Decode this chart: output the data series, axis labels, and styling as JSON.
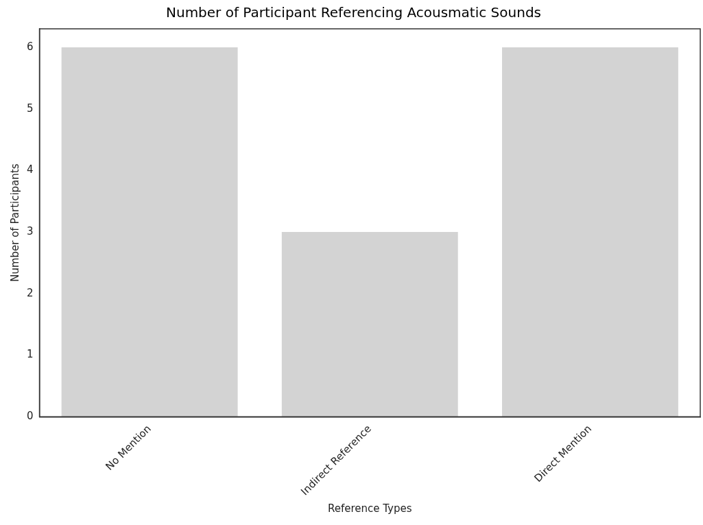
{
  "chart_data": {
    "type": "bar",
    "title": "Number of Participant Referencing Acousmatic Sounds",
    "xlabel": "Reference Types",
    "ylabel": "Number of Participants",
    "categories": [
      "No Mention",
      "Indirect Reference",
      "Direct Mention"
    ],
    "values": [
      6,
      3,
      6
    ],
    "color": "#d3d3d3",
    "ylim": [
      0,
      6.3
    ],
    "yticks": [
      0,
      1,
      2,
      3,
      4,
      5,
      6
    ],
    "grid": false,
    "legend": false
  }
}
